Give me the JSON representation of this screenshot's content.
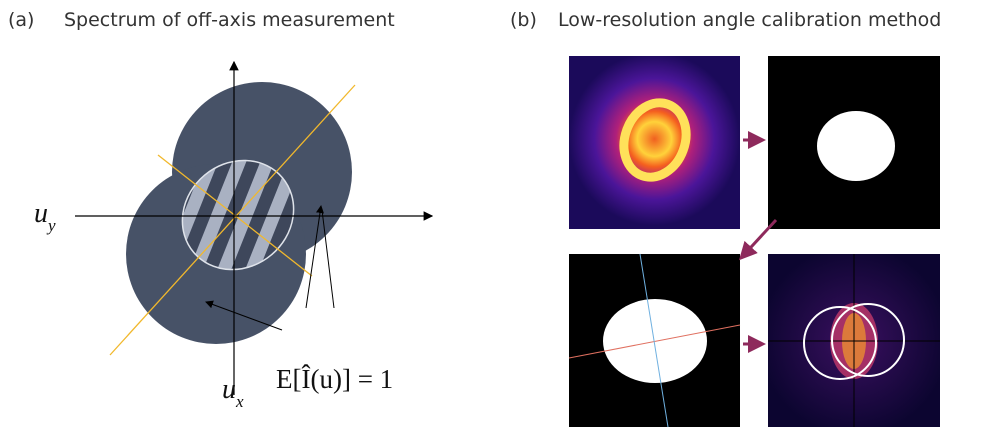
{
  "panels": [
    {
      "label": "(a)",
      "title": "Spectrum of off-axis measurement"
    },
    {
      "label": "(b)",
      "title": "Low-resolution angle calibration method"
    }
  ],
  "axes": {
    "horizontal": {
      "symbol": "u",
      "subscript": "y"
    },
    "vertical": {
      "symbol": "u",
      "subscript": "x"
    }
  },
  "annotation": "E[Î(u)] = 1"
}
